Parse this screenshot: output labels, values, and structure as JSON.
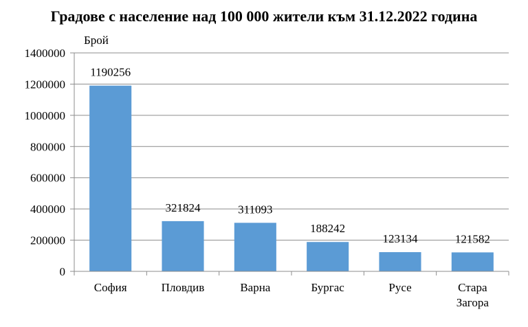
{
  "chart_data": {
    "type": "bar",
    "title": "Градове с население над 100 000 жители към 31.12.2022 година",
    "ylabel": "Брой",
    "xlabel": "",
    "categories": [
      [
        "София"
      ],
      [
        "Пловдив"
      ],
      [
        "Варна"
      ],
      [
        "Бургас"
      ],
      [
        "Русе"
      ],
      [
        "Стара",
        "Загора"
      ]
    ],
    "values": [
      1190256,
      321824,
      311093,
      188242,
      123134,
      121582
    ],
    "ylim": [
      0,
      1400000
    ],
    "yticks": [
      0,
      200000,
      400000,
      600000,
      800000,
      1000000,
      1200000,
      1400000
    ],
    "grid": true,
    "data_labels": true,
    "bar_color": "#5b9bd5",
    "grid_color": "#8c8c8c"
  }
}
